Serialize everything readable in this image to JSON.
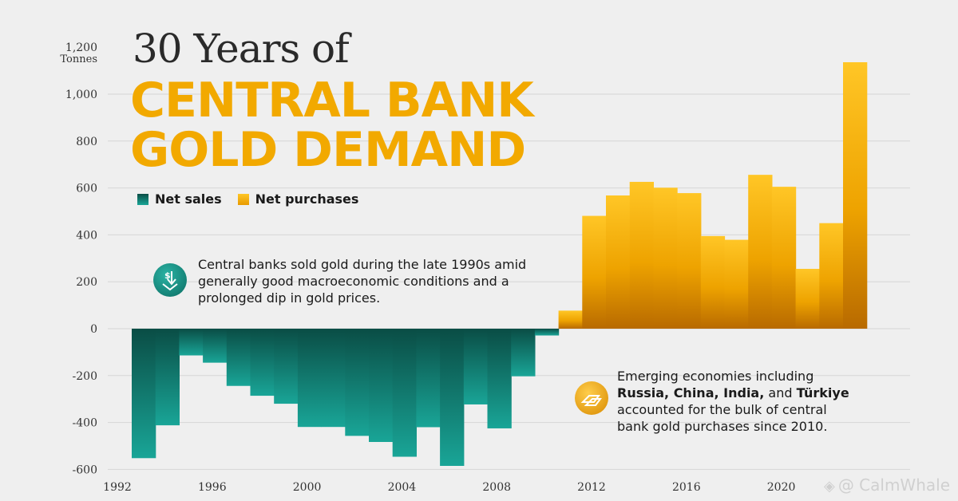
{
  "title": {
    "line1": "30 Years of",
    "line2": "CENTRAL BANK",
    "line3": "GOLD DEMAND"
  },
  "legend": {
    "sales_label": "Net sales",
    "purchases_label": "Net purchases"
  },
  "annotations": {
    "sales_note": "Central banks sold gold during the late 1990s amid generally good macroeconomic conditions and a prolonged dip in gold prices.",
    "purchases_note_prefix": "Emerging economies including",
    "purchases_note_countries": "Russia, China, India,",
    "purchases_note_and": "and",
    "purchases_note_turkiye": "Türkiye",
    "purchases_note_suffix": "accounted for the bulk of central bank gold purchases since 2010."
  },
  "watermark": "@ CalmWhale",
  "colors": {
    "sales_top": "#0a4d45",
    "sales_bottom": "#19a597",
    "purchases_top": "#ffc626",
    "purchases_bottom": "#b86a00",
    "title_gold": "#f2a900",
    "background": "#efefef"
  },
  "chart_data": {
    "type": "bar",
    "title": "30 Years of Central Bank Gold Demand",
    "ylabel": "Tonnes",
    "ylim": [
      -600,
      1200
    ],
    "yticks": [
      -600,
      -400,
      -200,
      0,
      200,
      400,
      600,
      800,
      1000,
      1200
    ],
    "ytick_labels": [
      "-600",
      "-400",
      "-200",
      "0",
      "200",
      "400",
      "600",
      "800",
      "1,000",
      "1,200"
    ],
    "xticks": [
      1992,
      1996,
      2000,
      2004,
      2008,
      2012,
      2016,
      2020
    ],
    "x": [
      1993,
      1994,
      1995,
      1996,
      1997,
      1998,
      1999,
      2000,
      2001,
      2002,
      2003,
      2004,
      2005,
      2006,
      2007,
      2008,
      2009,
      2010,
      2011,
      2012,
      2013,
      2014,
      2015,
      2016,
      2017,
      2018,
      2019,
      2020,
      2021,
      2022
    ],
    "values": [
      -552,
      -412,
      -114,
      -145,
      -244,
      -286,
      -320,
      -419,
      -419,
      -457,
      -483,
      -546,
      -420,
      -585,
      -323,
      -425,
      -203,
      -29,
      77,
      481,
      568,
      626,
      601,
      578,
      395,
      379,
      656,
      605,
      255,
      450
    ],
    "values_cont": [
      1136
    ],
    "grid": true,
    "legend": [
      "Net sales",
      "Net purchases"
    ]
  }
}
